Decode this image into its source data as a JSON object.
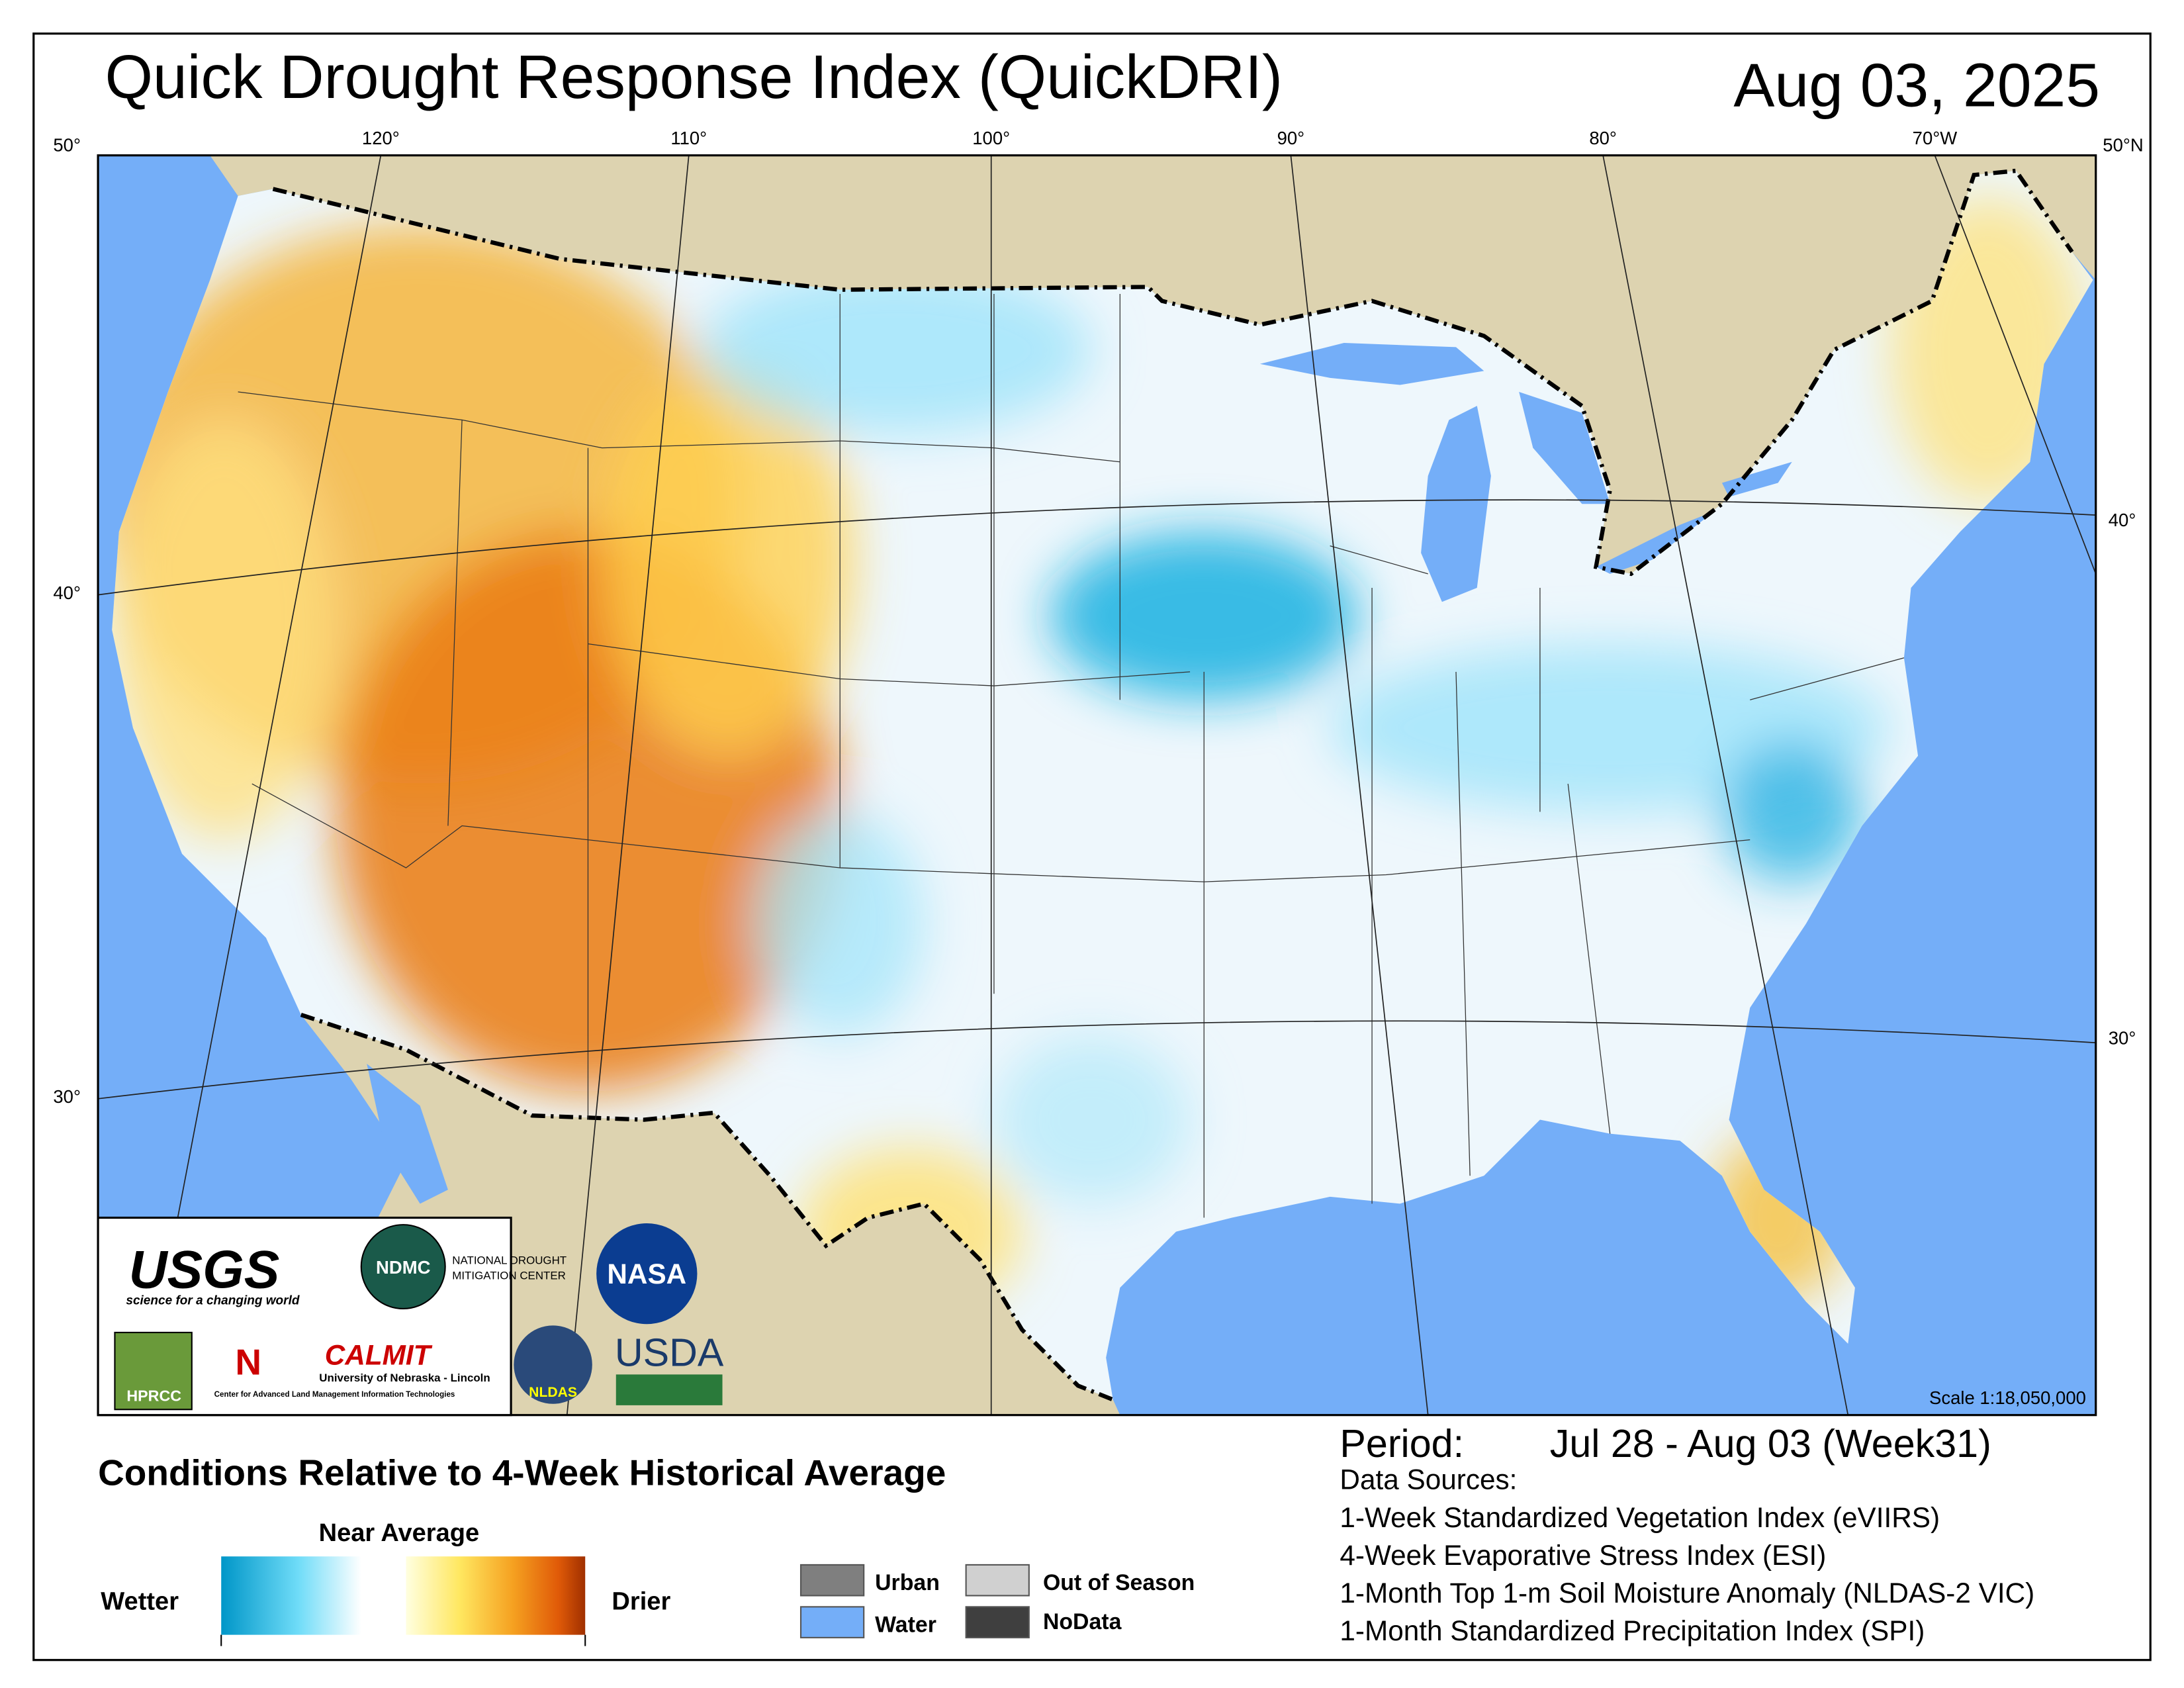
{
  "header": {
    "title": "Quick Drought Response Index (QuickDRI)",
    "date": "Aug 03, 2025"
  },
  "map": {
    "longitude_labels": [
      "120°",
      "110°",
      "100°",
      "90°",
      "80°",
      "70°W"
    ],
    "corner_labels": {
      "top_left": "50°",
      "top_right": "50°N"
    },
    "latitude_labels_left": [
      "40°",
      "30°"
    ],
    "latitude_labels_right": [
      "40°",
      "30°"
    ],
    "scale": "Scale 1:18,050,000"
  },
  "logos": {
    "usgs": "USGS",
    "usgs_tagline": "science for a changing world",
    "ndmc": "NDMC",
    "ndmc_name_1": "NATIONAL DROUGHT",
    "ndmc_name_2": "MITIGATION CENTER",
    "nasa": "NASA",
    "hprcc": "HPRCC",
    "calmit": "CALMIT",
    "unl": "University of Nebraska - Lincoln",
    "calmit_full": "Center for Advanced Land Management Information Technologies",
    "nldas": "NLDAS",
    "usda": "USDA"
  },
  "legend": {
    "heading": "Conditions Relative to 4-Week Historical Average",
    "near_average": "Near Average",
    "wetter": "Wetter",
    "drier": "Drier",
    "classes": [
      "Urban",
      "Water",
      "Out of Season",
      "NoData"
    ]
  },
  "info": {
    "period_label": "Period:",
    "period": "Jul 28 - Aug 03 (Week31)",
    "sources_heading": "Data Sources:",
    "sources": [
      "1-Week Standardized Vegetation Index (eVIIRS)",
      "4-Week Evaporative Stress Index (ESI)",
      "1-Month Top 1-m Soil Moisture Anomaly (NLDAS-2 VIC)",
      "1-Month Standardized Precipitation Index (SPI)"
    ]
  }
}
